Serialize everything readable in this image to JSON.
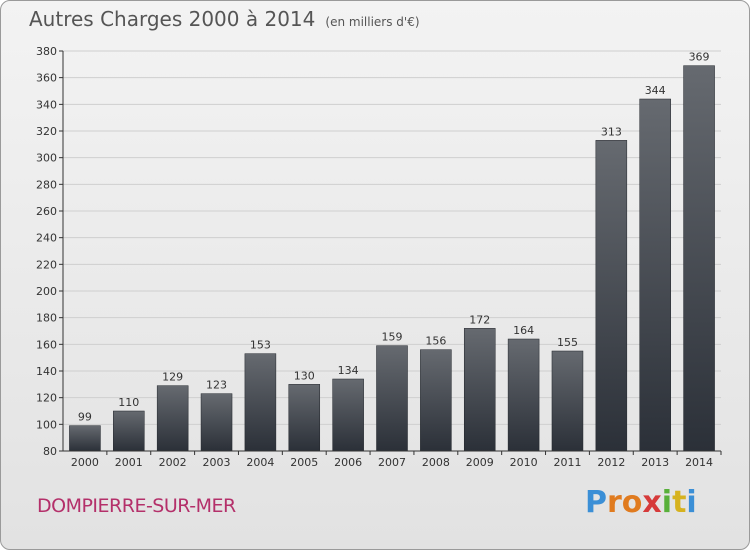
{
  "title": "Autres Charges 2000 à 2014",
  "subtitle": "(en milliers d'€)",
  "commune": "DOMPIERRE-SUR-MER",
  "brand": {
    "letters": [
      "P",
      "r",
      "o",
      "x",
      "i",
      "t",
      "i"
    ],
    "colors": [
      "#3b8fd6",
      "#e07b1f",
      "#e07b1f",
      "#d63a3a",
      "#58b03a",
      "#d6b21f",
      "#3b8fd6"
    ]
  },
  "colors": {
    "bar_top": "#666a70",
    "bar_bottom": "#2b3038",
    "grid": "#cfcfcf",
    "axis": "#333333",
    "title": "#555555",
    "commune": "#b4306a"
  },
  "chart_data": {
    "type": "bar",
    "categories": [
      "2000",
      "2001",
      "2002",
      "2003",
      "2004",
      "2005",
      "2006",
      "2007",
      "2008",
      "2009",
      "2010",
      "2011",
      "2012",
      "2013",
      "2014"
    ],
    "values": [
      99,
      110,
      129,
      123,
      153,
      130,
      134,
      159,
      156,
      172,
      164,
      155,
      313,
      344,
      369
    ],
    "ylim": [
      80,
      380
    ],
    "yticks": [
      80,
      100,
      120,
      140,
      160,
      180,
      200,
      220,
      240,
      260,
      280,
      300,
      320,
      340,
      360,
      380
    ],
    "grid": true,
    "data_labels": true
  }
}
